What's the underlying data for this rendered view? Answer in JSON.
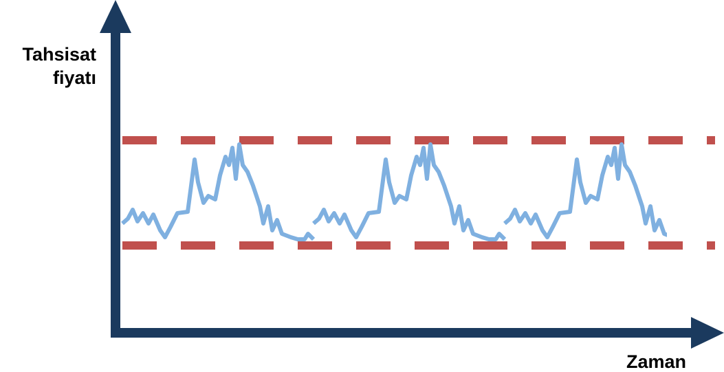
{
  "axes": {
    "y_label": [
      "Tahsisat",
      "fiyatı"
    ],
    "x_label": "Zaman"
  }
}
